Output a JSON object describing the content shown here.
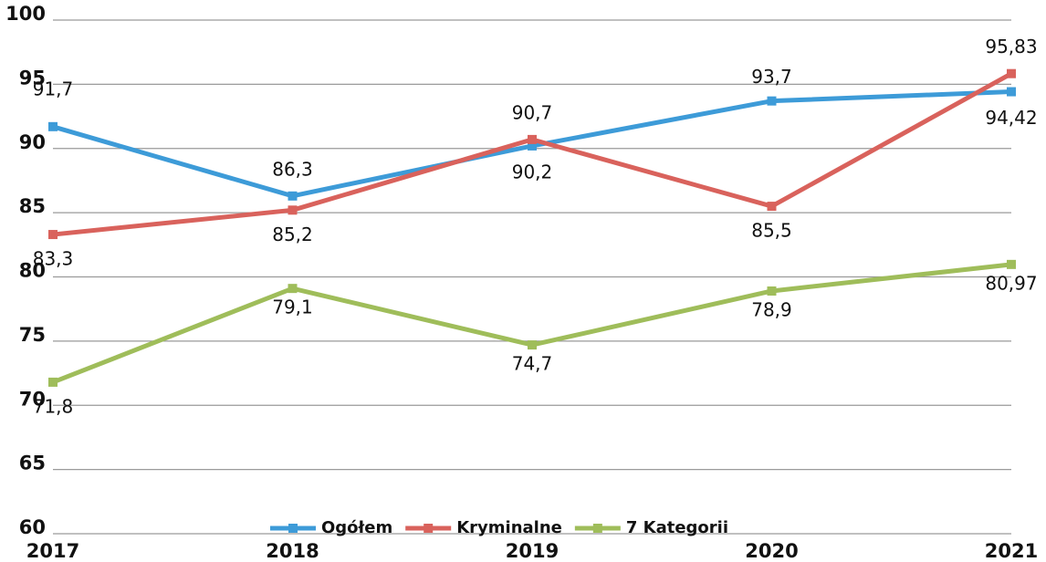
{
  "chart_data": {
    "type": "line",
    "categories": [
      "2017",
      "2018",
      "2019",
      "2020",
      "2021"
    ],
    "series": [
      {
        "name": "Ogółem",
        "color": "#3d9bd8",
        "values": [
          91.7,
          86.3,
          90.2,
          93.7,
          94.42
        ],
        "value_labels": [
          "91,7",
          "86,3",
          "90,2",
          "93,7",
          "94,42"
        ]
      },
      {
        "name": "Kryminalne",
        "color": "#d9625c",
        "values": [
          83.3,
          85.2,
          90.7,
          85.5,
          95.83
        ],
        "value_labels": [
          "83,3",
          "85,2",
          "90,7",
          "85,5",
          "95,83"
        ]
      },
      {
        "name": "7 Kategorii",
        "color": "#9fbd5a",
        "values": [
          71.8,
          79.1,
          74.7,
          78.9,
          80.97
        ],
        "value_labels": [
          "71,8",
          "79,1",
          "74,7",
          "78,9",
          "80,97"
        ]
      }
    ],
    "ylim": [
      60,
      100
    ],
    "yticks": [
      60,
      65,
      70,
      75,
      80,
      85,
      90,
      95,
      100
    ],
    "grid": true,
    "legend": "bottom"
  }
}
